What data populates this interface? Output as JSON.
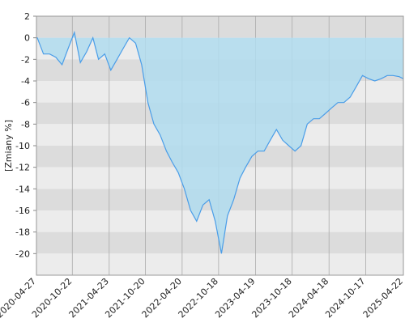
{
  "chart_data": {
    "type": "area",
    "y_label": "[Zmiany %]",
    "x": [
      "2020-04-27",
      "2020-05-01",
      "2020-06-01",
      "2020-07-01",
      "2020-08-01",
      "2020-09-01",
      "2020-10-01",
      "2020-11-01",
      "2020-12-01",
      "2021-01-01",
      "2021-02-01",
      "2021-03-01",
      "2021-04-01",
      "2021-05-01",
      "2021-06-01",
      "2021-07-01",
      "2021-08-01",
      "2021-09-01",
      "2021-10-01",
      "2021-11-01",
      "2021-12-01",
      "2022-01-01",
      "2022-02-01",
      "2022-03-01",
      "2022-04-01",
      "2022-05-01",
      "2022-06-01",
      "2022-07-01",
      "2022-08-01",
      "2022-09-01",
      "2022-10-01",
      "2022-11-01",
      "2022-12-01",
      "2023-01-01",
      "2023-02-01",
      "2023-03-01",
      "2023-04-01",
      "2023-05-01",
      "2023-06-01",
      "2023-07-01",
      "2023-08-01",
      "2023-09-01",
      "2023-10-01",
      "2023-11-01",
      "2023-12-01",
      "2024-01-01",
      "2024-02-01",
      "2024-03-01",
      "2024-04-01",
      "2024-05-01",
      "2024-06-01",
      "2024-07-01",
      "2024-08-01",
      "2024-09-01",
      "2024-10-01",
      "2024-11-01",
      "2024-12-01",
      "2025-01-01",
      "2025-02-01",
      "2025-03-01",
      "2025-04-01",
      "2025-04-22"
    ],
    "series": [
      {
        "name": "Zmiany",
        "color": "#4a9de8",
        "fill": "#b0dcee",
        "values": [
          0,
          0,
          -1.5,
          -1.5,
          -1.8,
          -2.5,
          -1,
          0.5,
          -2.3,
          -1.3,
          0,
          -2,
          -1.5,
          -3,
          -2,
          -1,
          0,
          -0.5,
          -2.5,
          -6,
          -8,
          -9,
          -10.5,
          -11.5,
          -12.5,
          -14,
          -16,
          -17,
          -15.5,
          -15,
          -17,
          -20,
          -16.5,
          -15,
          -13,
          -12,
          -11,
          -10.5,
          -10.5,
          -9.5,
          -8.5,
          -9.5,
          -10,
          -10.5,
          -10,
          -8,
          -7.5,
          -7.5,
          -7,
          -6.5,
          -6,
          -6,
          -5.5,
          -4.5,
          -3.5,
          -3.8,
          -4,
          -3.8,
          -3.5,
          -3.5,
          -3.6,
          -3.8
        ]
      }
    ],
    "xlim": [
      "2020-04-27",
      "2025-04-22"
    ],
    "xticks": [
      "2020-04-27",
      "2020-10-22",
      "2021-04-23",
      "2021-10-20",
      "2022-04-20",
      "2022-10-18",
      "2023-04-19",
      "2023-10-18",
      "2024-04-18",
      "2024-10-17",
      "2025-04-22"
    ],
    "ylim": [
      -22,
      2
    ],
    "yticks": [
      2,
      0,
      -2,
      -4,
      -6,
      -8,
      -10,
      -12,
      -14,
      -16,
      -18,
      -20
    ],
    "grid": true
  }
}
